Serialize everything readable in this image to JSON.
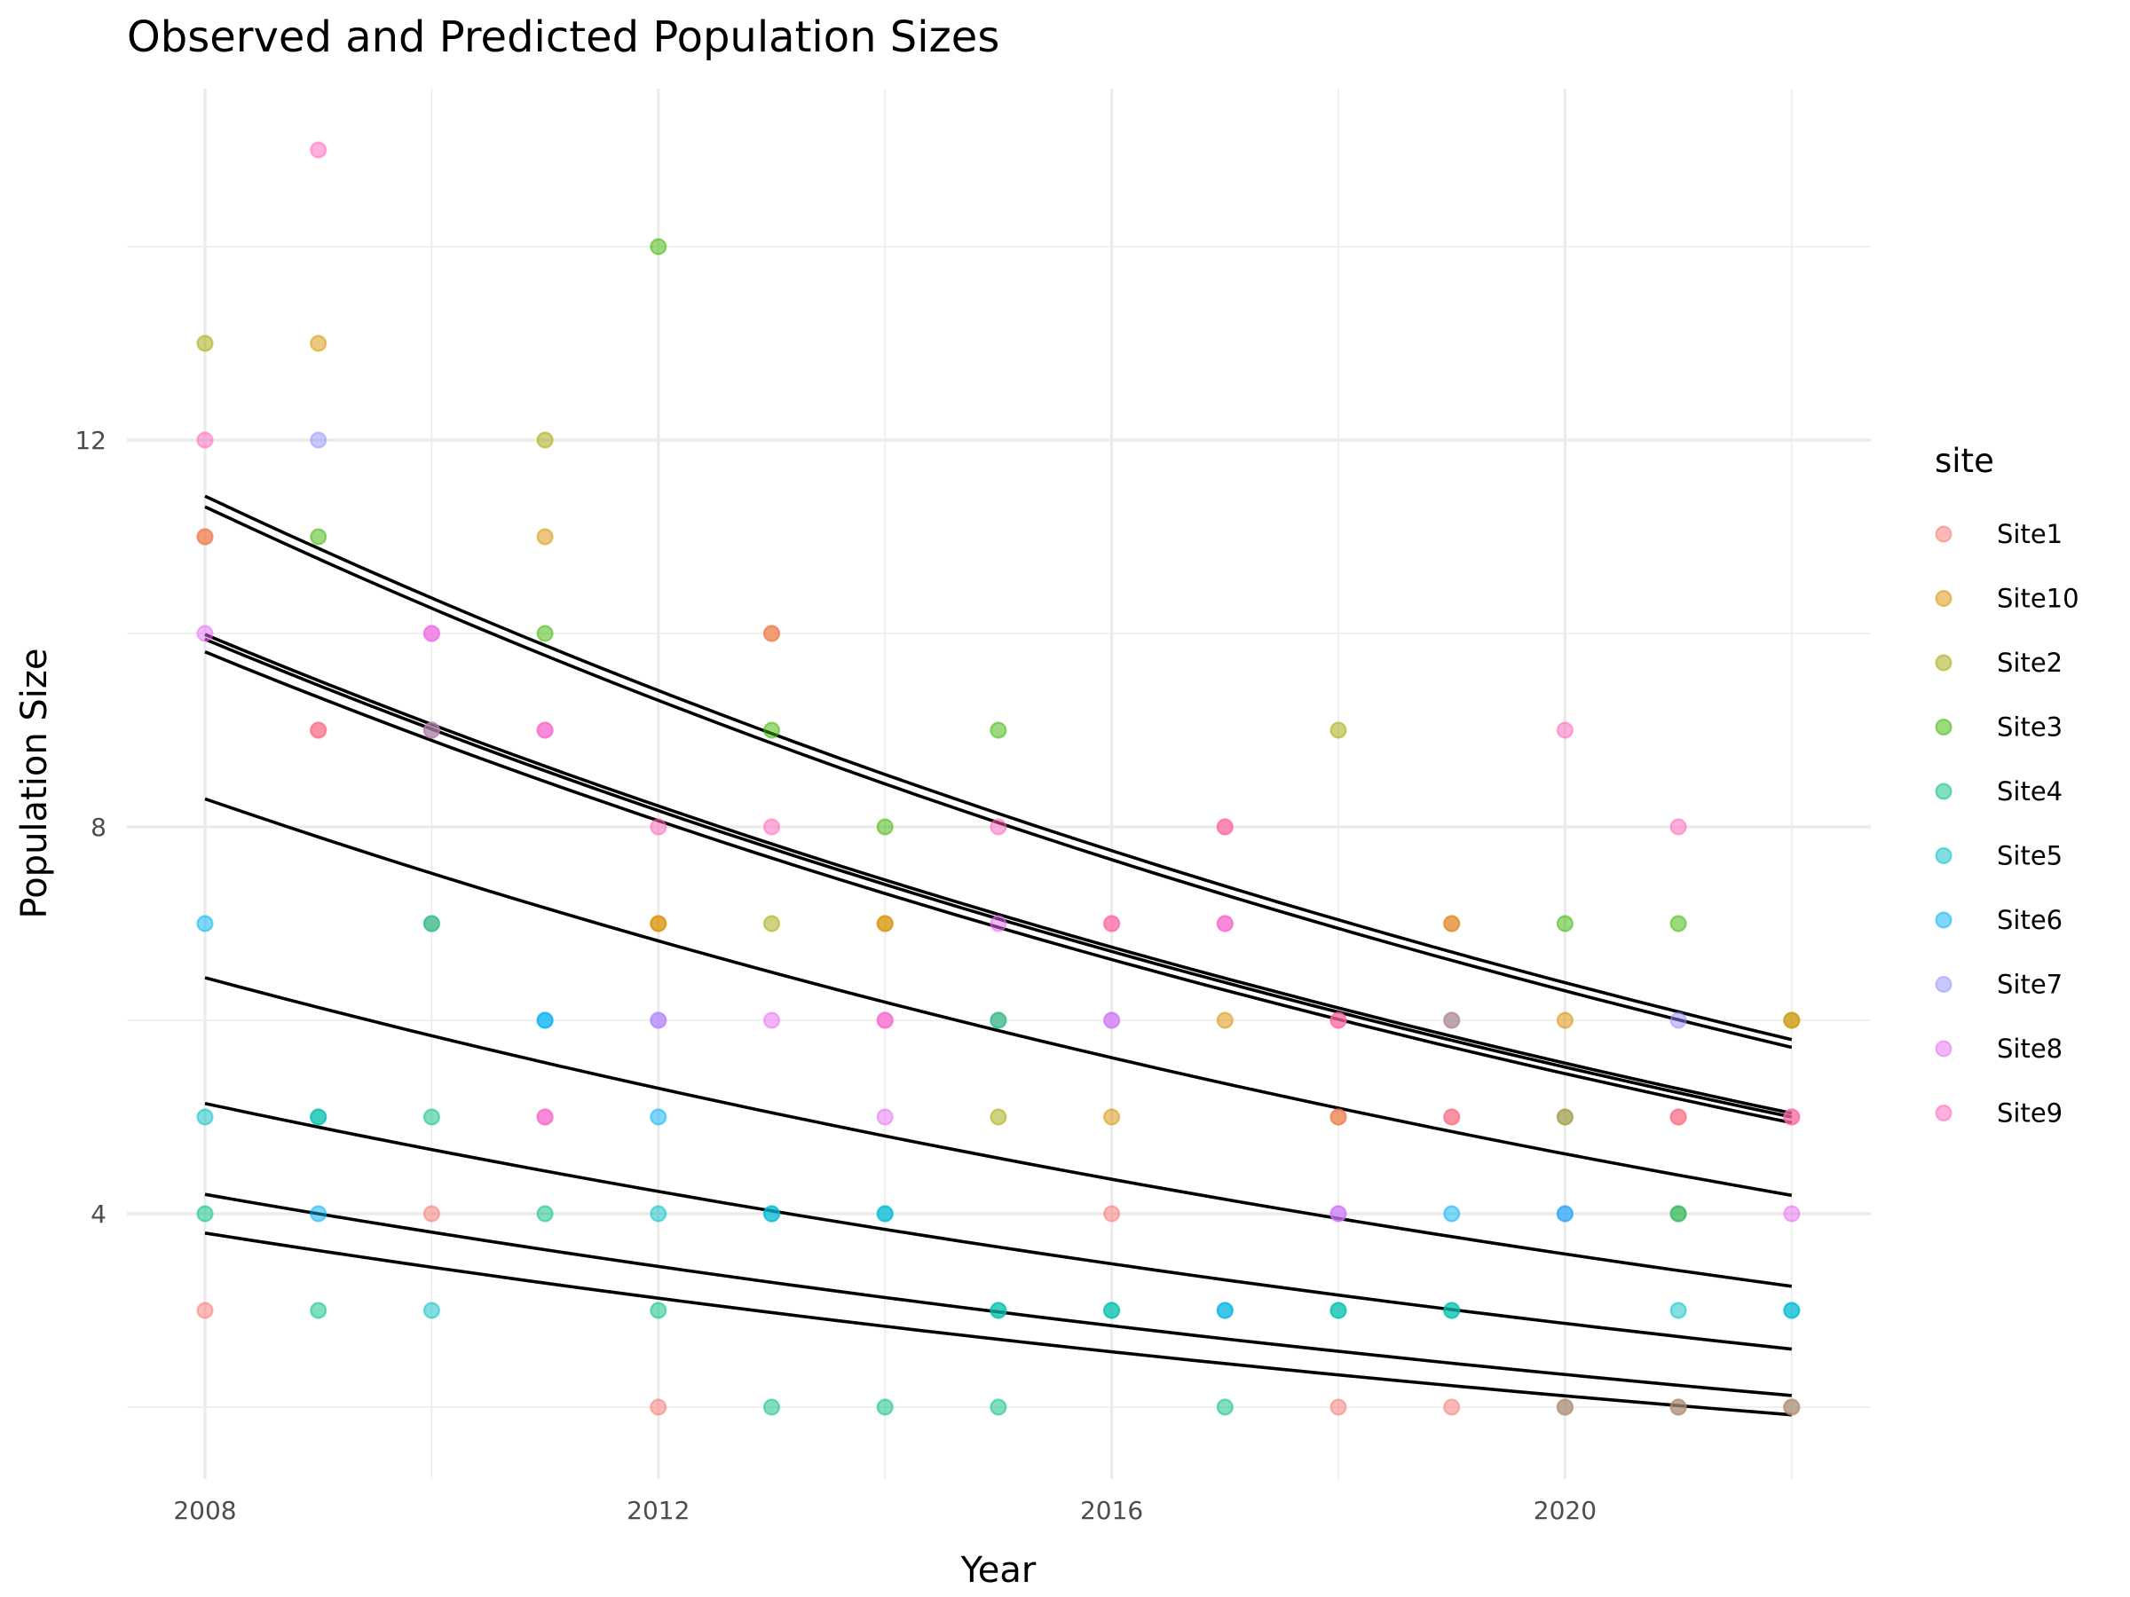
{
  "chart_data": {
    "type": "scatter",
    "title": "Observed and Predicted Population Sizes",
    "xlabel": "Year",
    "ylabel": "Population Size",
    "xlim": [
      2007.3,
      2022.7
    ],
    "ylim": [
      1.4,
      15.65
    ],
    "x_ticks": [
      2008,
      2012,
      2016,
      2020
    ],
    "x_minor": [
      2010,
      2014,
      2018,
      2022
    ],
    "y_ticks": [
      4,
      8,
      12
    ],
    "y_minor": [
      2,
      6,
      10,
      14
    ],
    "grid": true,
    "legend": {
      "title": "site",
      "position": "right",
      "entries": [
        {
          "name": "Site1",
          "color": "#F8766D"
        },
        {
          "name": "Site10",
          "color": "#D89000"
        },
        {
          "name": "Site2",
          "color": "#A3A500"
        },
        {
          "name": "Site3",
          "color": "#39B600"
        },
        {
          "name": "Site4",
          "color": "#00BF7D"
        },
        {
          "name": "Site5",
          "color": "#00BFC4"
        },
        {
          "name": "Site6",
          "color": "#00B0F6"
        },
        {
          "name": "Site7",
          "color": "#9590FF"
        },
        {
          "name": "Site8",
          "color": "#E76BF3"
        },
        {
          "name": "Site9",
          "color": "#FF62BC"
        }
      ]
    },
    "observed": [
      {
        "site": "Site2",
        "x": 2008,
        "y": 13
      },
      {
        "site": "Site9",
        "x": 2008,
        "y": 12
      },
      {
        "site": "Site10",
        "x": 2008,
        "y": 11
      },
      {
        "site": "Site1",
        "x": 2008,
        "y": 11
      },
      {
        "site": "Site8",
        "x": 2008,
        "y": 10
      },
      {
        "site": "Site6",
        "x": 2008,
        "y": 7
      },
      {
        "site": "Site5",
        "x": 2008,
        "y": 5
      },
      {
        "site": "Site4",
        "x": 2008,
        "y": 4
      },
      {
        "site": "Site1",
        "x": 2008,
        "y": 3
      },
      {
        "site": "Site9",
        "x": 2009,
        "y": 15
      },
      {
        "site": "Site10",
        "x": 2009,
        "y": 13
      },
      {
        "site": "Site7",
        "x": 2009,
        "y": 12
      },
      {
        "site": "Site3",
        "x": 2009,
        "y": 11
      },
      {
        "site": "Site9",
        "x": 2009,
        "y": 9
      },
      {
        "site": "Site1",
        "x": 2009,
        "y": 9
      },
      {
        "site": "Site4",
        "x": 2009,
        "y": 5
      },
      {
        "site": "Site5",
        "x": 2009,
        "y": 5
      },
      {
        "site": "Site6",
        "x": 2009,
        "y": 4
      },
      {
        "site": "Site4",
        "x": 2009,
        "y": 3
      },
      {
        "site": "Site9",
        "x": 2010,
        "y": 10
      },
      {
        "site": "Site8",
        "x": 2010,
        "y": 10
      },
      {
        "site": "Site4",
        "x": 2010,
        "y": 9
      },
      {
        "site": "Site9",
        "x": 2010,
        "y": 9
      },
      {
        "site": "Site2",
        "x": 2010,
        "y": 7
      },
      {
        "site": "Site5",
        "x": 2010,
        "y": 7
      },
      {
        "site": "Site4",
        "x": 2010,
        "y": 5
      },
      {
        "site": "Site1",
        "x": 2010,
        "y": 4
      },
      {
        "site": "Site5",
        "x": 2010,
        "y": 3
      },
      {
        "site": "Site2",
        "x": 2011,
        "y": 12
      },
      {
        "site": "Site10",
        "x": 2011,
        "y": 11
      },
      {
        "site": "Site3",
        "x": 2011,
        "y": 10
      },
      {
        "site": "Site8",
        "x": 2011,
        "y": 9
      },
      {
        "site": "Site9",
        "x": 2011,
        "y": 9
      },
      {
        "site": "Site6",
        "x": 2011,
        "y": 6
      },
      {
        "site": "Site6",
        "x": 2011,
        "y": 6
      },
      {
        "site": "Site8",
        "x": 2011,
        "y": 5
      },
      {
        "site": "Site9",
        "x": 2011,
        "y": 5
      },
      {
        "site": "Site4",
        "x": 2011,
        "y": 4
      },
      {
        "site": "Site3",
        "x": 2012,
        "y": 14
      },
      {
        "site": "Site9",
        "x": 2012,
        "y": 8
      },
      {
        "site": "Site10",
        "x": 2012,
        "y": 7
      },
      {
        "site": "Site10",
        "x": 2012,
        "y": 7
      },
      {
        "site": "Site8",
        "x": 2012,
        "y": 6
      },
      {
        "site": "Site7",
        "x": 2012,
        "y": 6
      },
      {
        "site": "Site6",
        "x": 2012,
        "y": 5
      },
      {
        "site": "Site5",
        "x": 2012,
        "y": 4
      },
      {
        "site": "Site4",
        "x": 2012,
        "y": 3
      },
      {
        "site": "Site1",
        "x": 2012,
        "y": 2
      },
      {
        "site": "Site10",
        "x": 2013,
        "y": 10
      },
      {
        "site": "Site1",
        "x": 2013,
        "y": 10
      },
      {
        "site": "Site3",
        "x": 2013,
        "y": 9
      },
      {
        "site": "Site9",
        "x": 2013,
        "y": 8
      },
      {
        "site": "Site2",
        "x": 2013,
        "y": 7
      },
      {
        "site": "Site8",
        "x": 2013,
        "y": 6
      },
      {
        "site": "Site6",
        "x": 2013,
        "y": 4
      },
      {
        "site": "Site5",
        "x": 2013,
        "y": 4
      },
      {
        "site": "Site4",
        "x": 2013,
        "y": 2
      },
      {
        "site": "Site3",
        "x": 2014,
        "y": 8
      },
      {
        "site": "Site10",
        "x": 2014,
        "y": 7
      },
      {
        "site": "Site10",
        "x": 2014,
        "y": 7
      },
      {
        "site": "Site8",
        "x": 2014,
        "y": 6
      },
      {
        "site": "Site9",
        "x": 2014,
        "y": 6
      },
      {
        "site": "Site8",
        "x": 2014,
        "y": 5
      },
      {
        "site": "Site6",
        "x": 2014,
        "y": 4
      },
      {
        "site": "Site5",
        "x": 2014,
        "y": 4
      },
      {
        "site": "Site4",
        "x": 2014,
        "y": 2
      },
      {
        "site": "Site3",
        "x": 2015,
        "y": 9
      },
      {
        "site": "Site9",
        "x": 2015,
        "y": 8
      },
      {
        "site": "Site8",
        "x": 2015,
        "y": 7
      },
      {
        "site": "Site2",
        "x": 2015,
        "y": 6
      },
      {
        "site": "Site5",
        "x": 2015,
        "y": 6
      },
      {
        "site": "Site2",
        "x": 2015,
        "y": 5
      },
      {
        "site": "Site4",
        "x": 2015,
        "y": 3
      },
      {
        "site": "Site5",
        "x": 2015,
        "y": 3
      },
      {
        "site": "Site4",
        "x": 2015,
        "y": 2
      },
      {
        "site": "Site1",
        "x": 2016,
        "y": 7
      },
      {
        "site": "Site9",
        "x": 2016,
        "y": 7
      },
      {
        "site": "Site7",
        "x": 2016,
        "y": 6
      },
      {
        "site": "Site8",
        "x": 2016,
        "y": 6
      },
      {
        "site": "Site10",
        "x": 2016,
        "y": 5
      },
      {
        "site": "Site1",
        "x": 2016,
        "y": 4
      },
      {
        "site": "Site4",
        "x": 2016,
        "y": 3
      },
      {
        "site": "Site5",
        "x": 2016,
        "y": 3
      },
      {
        "site": "Site1",
        "x": 2017,
        "y": 8
      },
      {
        "site": "Site9",
        "x": 2017,
        "y": 8
      },
      {
        "site": "Site8",
        "x": 2017,
        "y": 7
      },
      {
        "site": "Site9",
        "x": 2017,
        "y": 7
      },
      {
        "site": "Site10",
        "x": 2017,
        "y": 6
      },
      {
        "site": "Site5",
        "x": 2017,
        "y": 3
      },
      {
        "site": "Site6",
        "x": 2017,
        "y": 3
      },
      {
        "site": "Site4",
        "x": 2017,
        "y": 2
      },
      {
        "site": "Site2",
        "x": 2018,
        "y": 9
      },
      {
        "site": "Site1",
        "x": 2018,
        "y": 6
      },
      {
        "site": "Site9",
        "x": 2018,
        "y": 6
      },
      {
        "site": "Site10",
        "x": 2018,
        "y": 5
      },
      {
        "site": "Site1",
        "x": 2018,
        "y": 5
      },
      {
        "site": "Site7",
        "x": 2018,
        "y": 4
      },
      {
        "site": "Site8",
        "x": 2018,
        "y": 4
      },
      {
        "site": "Site4",
        "x": 2018,
        "y": 3
      },
      {
        "site": "Site5",
        "x": 2018,
        "y": 3
      },
      {
        "site": "Site1",
        "x": 2018,
        "y": 2
      },
      {
        "site": "Site1",
        "x": 2019,
        "y": 7
      },
      {
        "site": "Site10",
        "x": 2019,
        "y": 7
      },
      {
        "site": "Site6",
        "x": 2019,
        "y": 6
      },
      {
        "site": "Site1",
        "x": 2019,
        "y": 6
      },
      {
        "site": "Site9",
        "x": 2019,
        "y": 5
      },
      {
        "site": "Site1",
        "x": 2019,
        "y": 5
      },
      {
        "site": "Site6",
        "x": 2019,
        "y": 4
      },
      {
        "site": "Site4",
        "x": 2019,
        "y": 3
      },
      {
        "site": "Site5",
        "x": 2019,
        "y": 3
      },
      {
        "site": "Site1",
        "x": 2019,
        "y": 2
      },
      {
        "site": "Site9",
        "x": 2020,
        "y": 9
      },
      {
        "site": "Site3",
        "x": 2020,
        "y": 7
      },
      {
        "site": "Site10",
        "x": 2020,
        "y": 6
      },
      {
        "site": "Site7",
        "x": 2020,
        "y": 5
      },
      {
        "site": "Site2",
        "x": 2020,
        "y": 5
      },
      {
        "site": "Site7",
        "x": 2020,
        "y": 4
      },
      {
        "site": "Site6",
        "x": 2020,
        "y": 4
      },
      {
        "site": "Site4",
        "x": 2020,
        "y": 2
      },
      {
        "site": "Site1",
        "x": 2020,
        "y": 2
      },
      {
        "site": "Site9",
        "x": 2021,
        "y": 8
      },
      {
        "site": "Site3",
        "x": 2021,
        "y": 7
      },
      {
        "site": "Site7",
        "x": 2021,
        "y": 6
      },
      {
        "site": "Site9",
        "x": 2021,
        "y": 5
      },
      {
        "site": "Site1",
        "x": 2021,
        "y": 5
      },
      {
        "site": "Site2",
        "x": 2021,
        "y": 4
      },
      {
        "site": "Site4",
        "x": 2021,
        "y": 4
      },
      {
        "site": "Site5",
        "x": 2021,
        "y": 3
      },
      {
        "site": "Site4",
        "x": 2021,
        "y": 2
      },
      {
        "site": "Site1",
        "x": 2021,
        "y": 2
      },
      {
        "site": "Site2",
        "x": 2022,
        "y": 6
      },
      {
        "site": "Site10",
        "x": 2022,
        "y": 6
      },
      {
        "site": "Site1",
        "x": 2022,
        "y": 5
      },
      {
        "site": "Site9",
        "x": 2022,
        "y": 5
      },
      {
        "site": "Site8",
        "x": 2022,
        "y": 4
      },
      {
        "site": "Site6",
        "x": 2022,
        "y": 3
      },
      {
        "site": "Site5",
        "x": 2022,
        "y": 3
      },
      {
        "site": "Site4",
        "x": 2022,
        "y": 2
      },
      {
        "site": "Site1",
        "x": 2022,
        "y": 2
      }
    ],
    "predicted": [
      {
        "start_year": 2008,
        "end_year": 2022,
        "start": 11.42,
        "end": 5.8
      },
      {
        "start_year": 2008,
        "end_year": 2022,
        "start": 11.31,
        "end": 5.72
      },
      {
        "start_year": 2008,
        "end_year": 2022,
        "start": 9.99,
        "end": 5.04
      },
      {
        "start_year": 2008,
        "end_year": 2022,
        "start": 9.94,
        "end": 5.0
      },
      {
        "start_year": 2008,
        "end_year": 2022,
        "start": 9.81,
        "end": 4.94
      },
      {
        "start_year": 2008,
        "end_year": 2022,
        "start": 8.29,
        "end": 4.19
      },
      {
        "start_year": 2008,
        "end_year": 2022,
        "start": 6.44,
        "end": 3.25
      },
      {
        "start_year": 2008,
        "end_year": 2022,
        "start": 5.14,
        "end": 2.6
      },
      {
        "start_year": 2008,
        "end_year": 2022,
        "start": 4.2,
        "end": 2.12
      },
      {
        "start_year": 2008,
        "end_year": 2022,
        "start": 3.8,
        "end": 1.92
      }
    ],
    "predicted_color": "#000000",
    "point_alpha": 0.5
  }
}
